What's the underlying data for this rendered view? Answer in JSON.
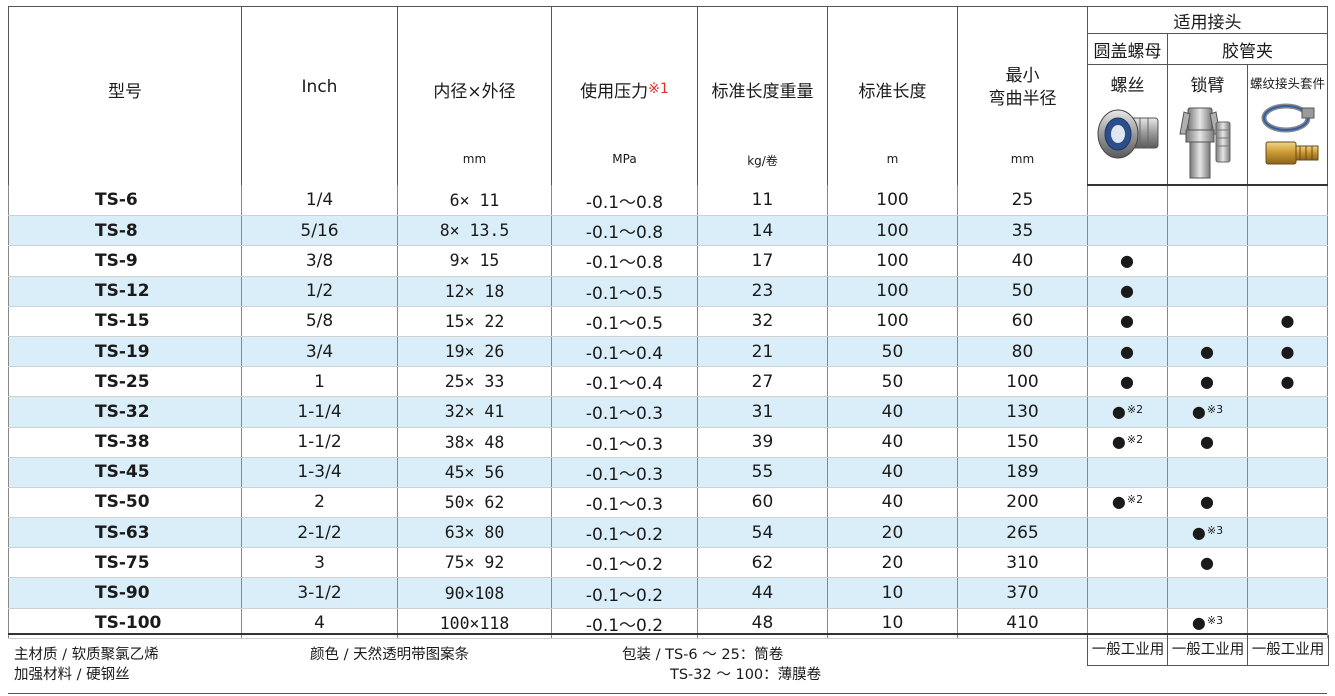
{
  "headers": {
    "model": "型号",
    "inch": "Inch",
    "size": "内径×外径",
    "size_unit": "mm",
    "pressure": "使用压力",
    "pressure_note": "※1",
    "pressure_unit": "MPa",
    "weight": "标准长度重量",
    "weight_unit": "kg/卷",
    "length": "标准长度",
    "length_unit": "m",
    "radius_line1": "最小",
    "radius_line2": "弯曲半径",
    "radius_unit": "mm",
    "fittings_group": "适用接头",
    "nut_group": "圆盖螺母",
    "clamp_group": "胶管夹",
    "col_thread": "螺丝",
    "col_lock": "锁臂",
    "col_kit": "螺纹接头套件"
  },
  "rows": [
    {
      "model": "TS-6",
      "inch": "1/4",
      "size": "6×  11",
      "pressure": "-0.1～0.8",
      "weight": "11",
      "length": "100",
      "radius": "25",
      "thread": "",
      "thread_note": "",
      "lock": "",
      "lock_note": "",
      "kit": ""
    },
    {
      "model": "TS-8",
      "inch": "5/16",
      "size": "8×  13.5",
      "pressure": "-0.1～0.8",
      "weight": "14",
      "length": "100",
      "radius": "35",
      "thread": "",
      "thread_note": "",
      "lock": "",
      "lock_note": "",
      "kit": ""
    },
    {
      "model": "TS-9",
      "inch": "3/8",
      "size": "9×  15",
      "pressure": "-0.1～0.8",
      "weight": "17",
      "length": "100",
      "radius": "40",
      "thread": "●",
      "thread_note": "",
      "lock": "",
      "lock_note": "",
      "kit": ""
    },
    {
      "model": "TS-12",
      "inch": "1/2",
      "size": "12×  18",
      "pressure": "-0.1～0.5",
      "weight": "23",
      "length": "100",
      "radius": "50",
      "thread": "●",
      "thread_note": "",
      "lock": "",
      "lock_note": "",
      "kit": ""
    },
    {
      "model": "TS-15",
      "inch": "5/8",
      "size": "15×  22",
      "pressure": "-0.1～0.5",
      "weight": "32",
      "length": "100",
      "radius": "60",
      "thread": "●",
      "thread_note": "",
      "lock": "",
      "lock_note": "",
      "kit": "●"
    },
    {
      "model": "TS-19",
      "inch": "3/4",
      "size": "19×  26",
      "pressure": "-0.1～0.4",
      "weight": "21",
      "length": "50",
      "radius": "80",
      "thread": "●",
      "thread_note": "",
      "lock": "●",
      "lock_note": "",
      "kit": "●"
    },
    {
      "model": "TS-25",
      "inch": "1",
      "size": "25×  33",
      "pressure": "-0.1～0.4",
      "weight": "27",
      "length": "50",
      "radius": "100",
      "thread": "●",
      "thread_note": "",
      "lock": "●",
      "lock_note": "",
      "kit": "●"
    },
    {
      "model": "TS-32",
      "inch": "1-1/4",
      "size": "32×  41",
      "pressure": "-0.1～0.3",
      "weight": "31",
      "length": "40",
      "radius": "130",
      "thread": "●",
      "thread_note": "※2",
      "lock": "●",
      "lock_note": "※3",
      "kit": ""
    },
    {
      "model": "TS-38",
      "inch": "1-1/2",
      "size": "38×  48",
      "pressure": "-0.1～0.3",
      "weight": "39",
      "length": "40",
      "radius": "150",
      "thread": "●",
      "thread_note": "※2",
      "lock": "●",
      "lock_note": "",
      "kit": ""
    },
    {
      "model": "TS-45",
      "inch": "1-3/4",
      "size": "45×  56",
      "pressure": "-0.1～0.3",
      "weight": "55",
      "length": "40",
      "radius": "189",
      "thread": "",
      "thread_note": "",
      "lock": "",
      "lock_note": "",
      "kit": ""
    },
    {
      "model": "TS-50",
      "inch": "2",
      "size": "50×  62",
      "pressure": "-0.1～0.3",
      "weight": "60",
      "length": "40",
      "radius": "200",
      "thread": "●",
      "thread_note": "※2",
      "lock": "●",
      "lock_note": "",
      "kit": ""
    },
    {
      "model": "TS-63",
      "inch": "2-1/2",
      "size": "63×  80",
      "pressure": "-0.1～0.2",
      "weight": "54",
      "length": "20",
      "radius": "265",
      "thread": "",
      "thread_note": "",
      "lock": "●",
      "lock_note": "※3",
      "kit": ""
    },
    {
      "model": "TS-75",
      "inch": "3",
      "size": "75×  92",
      "pressure": "-0.1～0.2",
      "weight": "62",
      "length": "20",
      "radius": "310",
      "thread": "",
      "thread_note": "",
      "lock": "●",
      "lock_note": "",
      "kit": ""
    },
    {
      "model": "TS-90",
      "inch": "3-1/2",
      "size": "90×108",
      "pressure": "-0.1～0.2",
      "weight": "44",
      "length": "10",
      "radius": "370",
      "thread": "",
      "thread_note": "",
      "lock": "",
      "lock_note": "",
      "kit": ""
    },
    {
      "model": "TS-100",
      "inch": "4",
      "size": "100×118",
      "pressure": "-0.1～0.2",
      "weight": "48",
      "length": "10",
      "radius": "410",
      "thread": "",
      "thread_note": "",
      "lock": "●",
      "lock_note": "※3",
      "kit": ""
    }
  ],
  "footer": {
    "material_main": "主材质 / 软质聚氯乙烯",
    "material_reinforce": "加强材料 / 硬钢丝",
    "color": "颜色 / 天然透明带图案条",
    "packing_line1": "包装 / TS-6 ～ 25：筒卷",
    "packing_line2": "TS-32 ～ 100：薄膜卷",
    "use_thread": "一般工业用",
    "use_lock": "一般工业用",
    "use_kit": "一般工业用"
  },
  "icons": {
    "thread": "threaded-nut-fitting-icon",
    "lock": "cam-lock-coupling-icon",
    "kit": "hose-clamp-kit-icon"
  }
}
